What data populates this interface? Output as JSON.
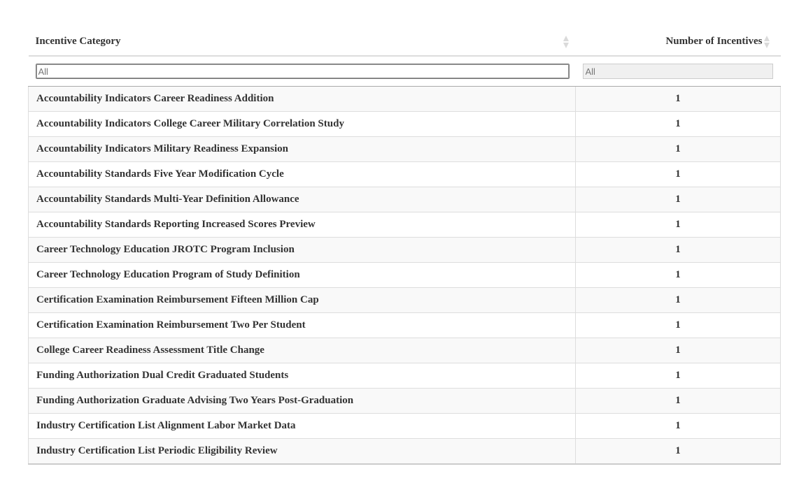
{
  "table": {
    "columns": [
      {
        "label": "Incentive Category"
      },
      {
        "label": "Number of Incentives"
      }
    ],
    "filters": [
      {
        "placeholder": "All"
      },
      {
        "placeholder": "All"
      }
    ],
    "rows": [
      {
        "category": "Accountability Indicators Career Readiness Addition",
        "count": "1"
      },
      {
        "category": "Accountability Indicators College Career Military Correlation Study",
        "count": "1"
      },
      {
        "category": "Accountability Indicators Military Readiness Expansion",
        "count": "1"
      },
      {
        "category": "Accountability Standards Five Year Modification Cycle",
        "count": "1"
      },
      {
        "category": "Accountability Standards Multi-Year Definition Allowance",
        "count": "1"
      },
      {
        "category": "Accountability Standards Reporting Increased Scores Preview",
        "count": "1"
      },
      {
        "category": "Career Technology Education JROTC Program Inclusion",
        "count": "1"
      },
      {
        "category": "Career Technology Education Program of Study Definition",
        "count": "1"
      },
      {
        "category": "Certification Examination Reimbursement Fifteen Million Cap",
        "count": "1"
      },
      {
        "category": "Certification Examination Reimbursement Two Per Student",
        "count": "1"
      },
      {
        "category": "College Career Readiness Assessment Title Change",
        "count": "1"
      },
      {
        "category": "Funding Authorization Dual Credit Graduated Students",
        "count": "1"
      },
      {
        "category": "Funding Authorization Graduate Advising Two Years Post-Graduation",
        "count": "1"
      },
      {
        "category": "Industry Certification List Alignment Labor Market Data",
        "count": "1"
      },
      {
        "category": "Industry Certification List Periodic Eligibility Review",
        "count": "1"
      }
    ]
  }
}
